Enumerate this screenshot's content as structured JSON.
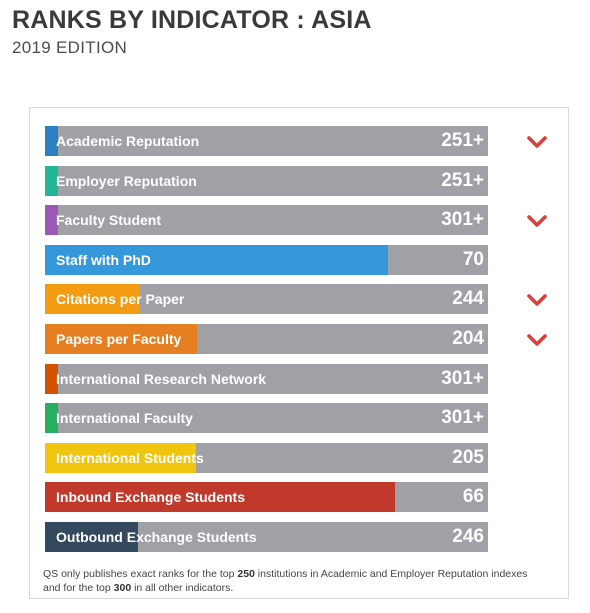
{
  "header": {
    "title": "RANKS BY INDICATOR : ASIA",
    "edition": "2019 EDITION"
  },
  "colors": {
    "bar_background": "#9fa1a6",
    "chevron": "#d9403a"
  },
  "indicators": [
    {
      "label": "Academic Reputation",
      "rank": "251+",
      "color": "#2e7fc1",
      "fill": 0.03,
      "chevron": true
    },
    {
      "label": "Employer Reputation",
      "rank": "251+",
      "color": "#23b596",
      "fill": 0.03,
      "chevron": false
    },
    {
      "label": "Faculty Student",
      "rank": "301+",
      "color": "#9b59b6",
      "fill": 0.03,
      "chevron": true
    },
    {
      "label": "Staff with PhD",
      "rank": "70",
      "color": "#3498db",
      "fill": 0.775,
      "chevron": false
    },
    {
      "label": "Citations per Paper",
      "rank": "244",
      "color": "#f39c12",
      "fill": 0.215,
      "chevron": true
    },
    {
      "label": "Papers per Faculty",
      "rank": "204",
      "color": "#e67e22",
      "fill": 0.343,
      "chevron": true
    },
    {
      "label": "International Research Network",
      "rank": "301+",
      "color": "#d35400",
      "fill": 0.03,
      "chevron": false
    },
    {
      "label": "International Faculty",
      "rank": "301+",
      "color": "#27ae60",
      "fill": 0.03,
      "chevron": false
    },
    {
      "label": "International Students",
      "rank": "205",
      "color": "#f1c40f",
      "fill": 0.34,
      "chevron": false
    },
    {
      "label": "Inbound Exchange Students",
      "rank": "66",
      "color": "#c0392b",
      "fill": 0.79,
      "chevron": false
    },
    {
      "label": "Outbound Exchange Students",
      "rank": "246",
      "color": "#34495e",
      "fill": 0.21,
      "chevron": false
    }
  ],
  "footnote": {
    "p1": "QS only publishes exact ranks for the top ",
    "n1": "250",
    "p2": " institutions in Academic and Employer Reputation indexes and for the top ",
    "n2": "300",
    "p3": " in all other indicators."
  }
}
